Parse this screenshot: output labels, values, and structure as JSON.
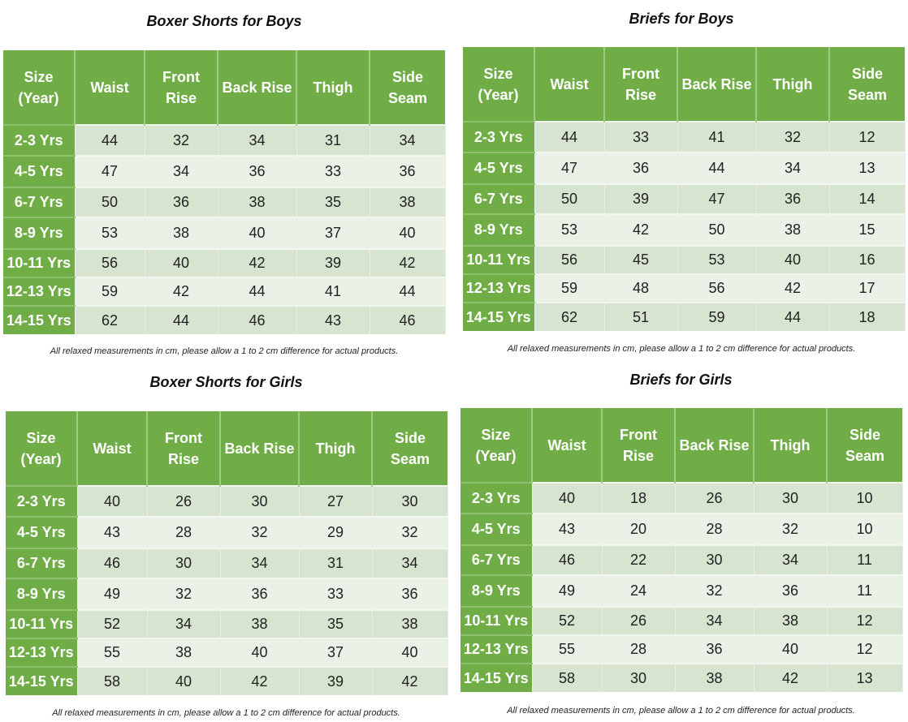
{
  "headers": [
    "Size (Year)",
    "Waist",
    "Front Rise",
    "Back Rise",
    "Thigh",
    "Side Seam"
  ],
  "sizes": [
    "2-3 Yrs",
    "4-5 Yrs",
    "6-7 Yrs",
    "8-9 Yrs",
    "10-11 Yrs",
    "12-13 Yrs",
    "14-15 Yrs"
  ],
  "note": "All relaxed measurements in cm, please allow a 1 to 2 cm difference for actual products.",
  "colors": {
    "header_green": "#70ad47",
    "row_dark": "#d6e4d0",
    "row_light": "#eaf1e7"
  },
  "tables": [
    {
      "id": "boxer-boys",
      "title": "Boxer Shorts for Boys",
      "rows": [
        [
          44,
          32,
          34,
          31,
          34
        ],
        [
          47,
          34,
          36,
          33,
          36
        ],
        [
          50,
          36,
          38,
          35,
          38
        ],
        [
          53,
          38,
          40,
          37,
          40
        ],
        [
          56,
          40,
          42,
          39,
          42
        ],
        [
          59,
          42,
          44,
          41,
          44
        ],
        [
          62,
          44,
          46,
          43,
          46
        ]
      ]
    },
    {
      "id": "briefs-boys",
      "title": "Briefs for Boys",
      "rows": [
        [
          44,
          33,
          41,
          32,
          12
        ],
        [
          47,
          36,
          44,
          34,
          13
        ],
        [
          50,
          39,
          47,
          36,
          14
        ],
        [
          53,
          42,
          50,
          38,
          15
        ],
        [
          56,
          45,
          53,
          40,
          16
        ],
        [
          59,
          48,
          56,
          42,
          17
        ],
        [
          62,
          51,
          59,
          44,
          18
        ]
      ]
    },
    {
      "id": "boxer-girls",
      "title": "Boxer Shorts for Girls",
      "rows": [
        [
          40,
          26,
          30,
          27,
          30
        ],
        [
          43,
          28,
          32,
          29,
          32
        ],
        [
          46,
          30,
          34,
          31,
          34
        ],
        [
          49,
          32,
          36,
          33,
          36
        ],
        [
          52,
          34,
          38,
          35,
          38
        ],
        [
          55,
          38,
          40,
          37,
          40
        ],
        [
          58,
          40,
          42,
          39,
          42
        ]
      ]
    },
    {
      "id": "briefs-girls",
      "title": "Briefs for Girls",
      "rows": [
        [
          40,
          18,
          26,
          30,
          10
        ],
        [
          43,
          20,
          28,
          32,
          10
        ],
        [
          46,
          22,
          30,
          34,
          11
        ],
        [
          49,
          24,
          32,
          36,
          11
        ],
        [
          52,
          26,
          34,
          38,
          12
        ],
        [
          55,
          28,
          36,
          40,
          12
        ],
        [
          58,
          30,
          38,
          42,
          13
        ]
      ]
    }
  ]
}
